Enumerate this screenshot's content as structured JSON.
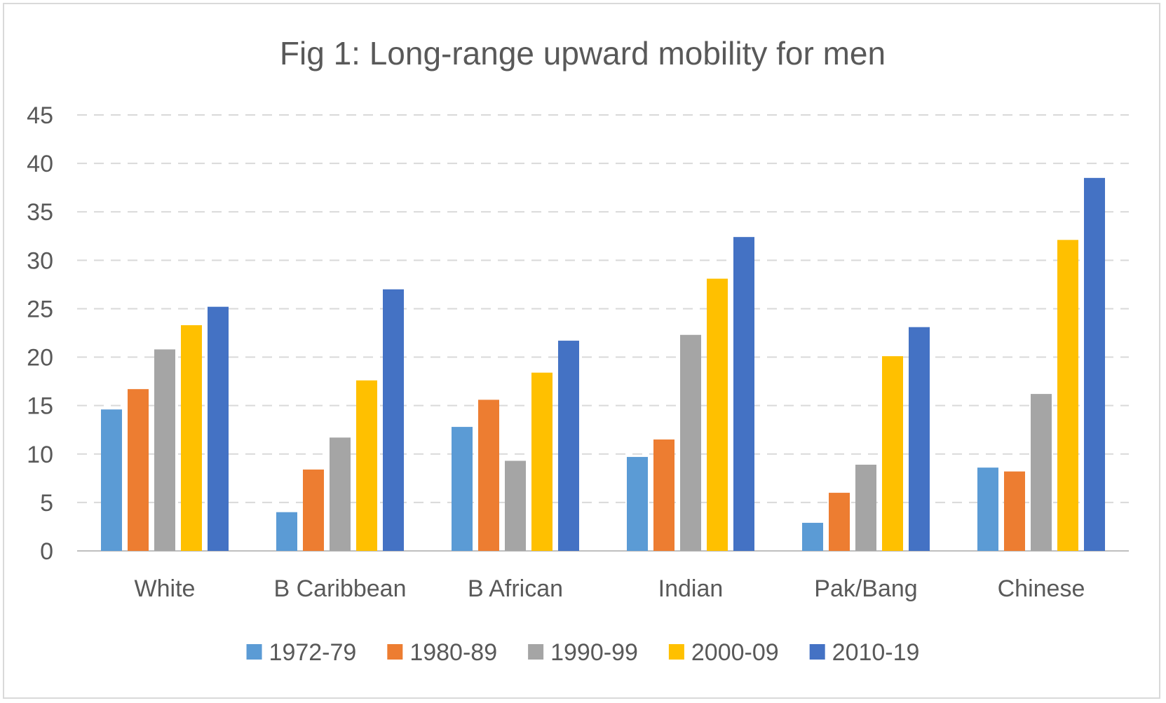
{
  "chart_data": {
    "type": "bar",
    "title": "Fig 1: Long-range upward mobility for men",
    "xlabel": "",
    "ylabel": "",
    "ylim": [
      0,
      45
    ],
    "yticks": [
      0,
      5,
      10,
      15,
      20,
      25,
      30,
      35,
      40,
      45
    ],
    "grid": true,
    "legend_position": "bottom",
    "categories": [
      "White",
      "B Caribbean",
      "B African",
      "Indian",
      "Pak/Bang",
      "Chinese"
    ],
    "series": [
      {
        "name": "1972-79",
        "color": "#5b9bd5",
        "values": [
          14.6,
          4.0,
          12.8,
          9.7,
          2.9,
          8.6
        ]
      },
      {
        "name": "1980-89",
        "color": "#ed7d31",
        "values": [
          16.7,
          8.4,
          15.6,
          11.5,
          6.0,
          8.2
        ]
      },
      {
        "name": "1990-99",
        "color": "#a5a5a5",
        "values": [
          20.8,
          11.7,
          9.3,
          22.3,
          8.9,
          16.2
        ]
      },
      {
        "name": "2000-09",
        "color": "#ffc000",
        "values": [
          23.3,
          17.6,
          18.4,
          28.1,
          20.1,
          32.1
        ]
      },
      {
        "name": "2010-19",
        "color": "#4472c4",
        "values": [
          25.2,
          27.0,
          21.7,
          32.4,
          23.1,
          38.5
        ]
      }
    ]
  }
}
